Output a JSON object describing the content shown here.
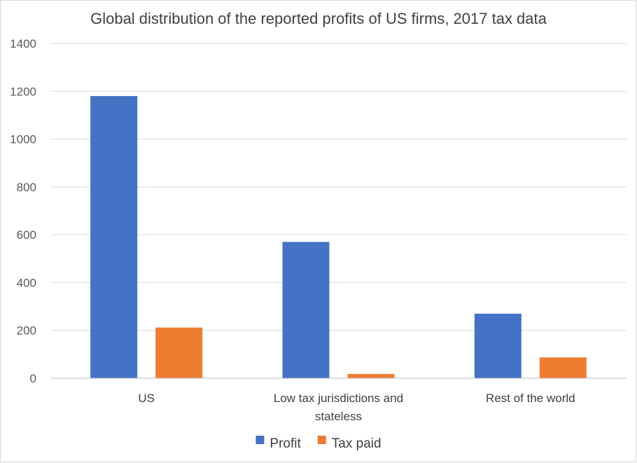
{
  "chart_data": {
    "type": "bar",
    "title": "Global distribution of the reported profits of US firms, 2017 tax data",
    "categories": [
      [
        "US"
      ],
      [
        "Low tax jurisdictions and",
        "stateless"
      ],
      [
        "Rest of the world"
      ]
    ],
    "series": [
      {
        "name": "Profit",
        "color": "#4472C4",
        "values": [
          1180,
          570,
          270
        ]
      },
      {
        "name": "Tax paid",
        "color": "#ED7D31",
        "values": [
          212,
          18,
          87
        ]
      }
    ],
    "ylim": [
      0,
      1400
    ],
    "yticks": [
      0,
      200,
      400,
      600,
      800,
      1000,
      1200,
      1400
    ],
    "grid": true,
    "legend": "bottom",
    "xlabel": "",
    "ylabel": ""
  }
}
